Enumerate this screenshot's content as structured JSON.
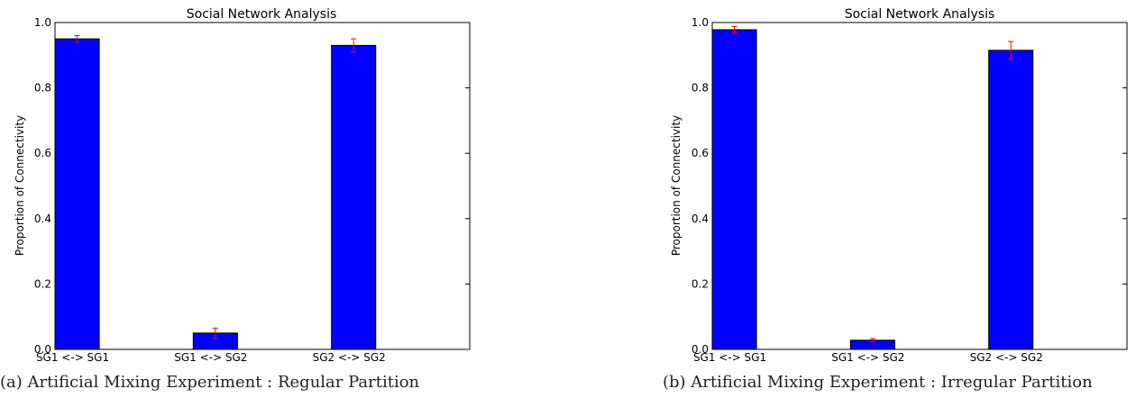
{
  "chart_data": [
    {
      "type": "bar",
      "title": "Social Network Analysis",
      "xlabel": "",
      "ylabel": "Proportion of Connectivity",
      "caption": "(a) Artificial Mixing Experiment : Regular Partition",
      "categories": [
        "SG1 <-> SG1",
        "SG1 <-> SG2",
        "SG2 <-> SG2"
      ],
      "values": [
        0.95,
        0.05,
        0.93
      ],
      "errors": [
        0.01,
        0.015,
        0.02
      ],
      "ylim": [
        0,
        1.0
      ],
      "yticks": [
        "0.0",
        "0.2",
        "0.4",
        "0.6",
        "0.8",
        "1.0"
      ],
      "grid": false,
      "bar_color": "#0000ff",
      "error_color": "#ff0000"
    },
    {
      "type": "bar",
      "title": "Social Network Analysis",
      "xlabel": "",
      "ylabel": "Proportion of Connectivity",
      "caption": "(b) Artificial Mixing Experiment : Irregular Partition",
      "categories": [
        "SG1 <-> SG1",
        "SG1 <-> SG2",
        "SG2 <-> SG2"
      ],
      "values": [
        0.978,
        0.028,
        0.915
      ],
      "errors": [
        0.01,
        0.005,
        0.027
      ],
      "ylim": [
        0,
        1.0
      ],
      "yticks": [
        "0.0",
        "0.2",
        "0.4",
        "0.6",
        "0.8",
        "1.0"
      ],
      "grid": false,
      "bar_color": "#0000ff",
      "error_color": "#ff0000"
    }
  ]
}
